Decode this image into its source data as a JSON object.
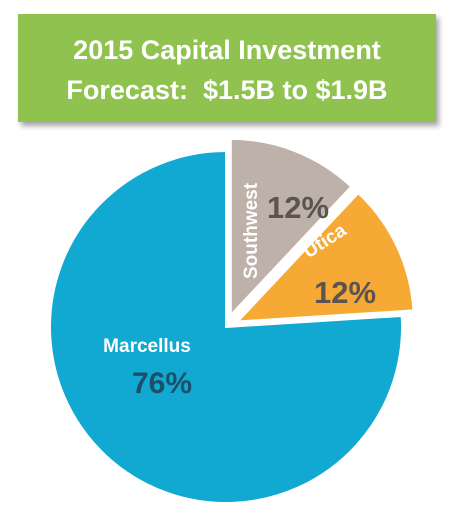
{
  "chart_data": {
    "type": "pie",
    "title_lines": [
      "2015 Capital Investment",
      "Forecast:  $1.5B to $1.9B"
    ],
    "slices": [
      {
        "name": "Marcellus",
        "value": 76,
        "label": "76%",
        "color": "#11a8d2"
      },
      {
        "name": "Southwest",
        "value": 12,
        "label": "12%",
        "color": "#beb1a9"
      },
      {
        "name": "Utica",
        "value": 12,
        "label": "12%",
        "color": "#f7a935"
      }
    ],
    "label_colors": {
      "name": "#ffffff",
      "marcellus_value": "#1d4f68",
      "other_value": "#5c5450"
    },
    "title_bg": "#8fc24f",
    "legend": "none",
    "exploded": [
      "Southwest",
      "Utica"
    ]
  }
}
